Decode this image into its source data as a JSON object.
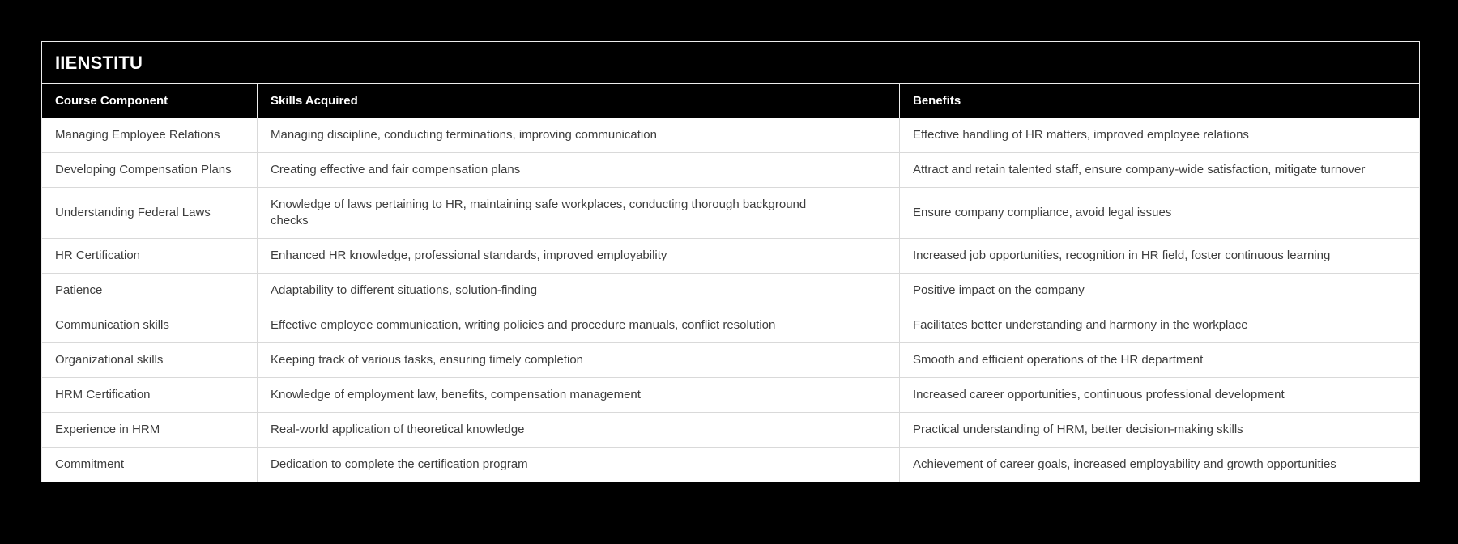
{
  "colors": {
    "page_background": "#000000",
    "panel_border": "#ededed",
    "header_background": "#000000",
    "header_text": "#ffffff",
    "body_background": "#ffffff",
    "body_text": "#3d3d3d",
    "row_divider": "#d9d9d9"
  },
  "table": {
    "title": "IIENSTITU",
    "columns": [
      "Course Component",
      "Skills Acquired",
      "Benefits"
    ],
    "rows": [
      [
        "Managing Employee Relations",
        "Managing discipline, conducting terminations, improving communication",
        "Effective handling of HR matters, improved employee relations"
      ],
      [
        "Developing Compensation Plans",
        "Creating effective and fair compensation plans",
        "Attract and retain talented staff, ensure company-wide satisfaction, mitigate turnover"
      ],
      [
        "Understanding Federal Laws",
        "Knowledge of laws pertaining to HR, maintaining safe workplaces, conducting thorough background checks",
        "Ensure company compliance, avoid legal issues"
      ],
      [
        "HR Certification",
        "Enhanced HR knowledge, professional standards, improved employability",
        "Increased job opportunities, recognition in HR field, foster continuous learning"
      ],
      [
        "Patience",
        "Adaptability to different situations, solution-finding",
        "Positive impact on the company"
      ],
      [
        "Communication skills",
        "Effective employee communication, writing policies and procedure manuals, conflict resolution",
        "Facilitates better understanding and harmony in the workplace"
      ],
      [
        "Organizational skills",
        "Keeping track of various tasks, ensuring timely completion",
        "Smooth and efficient operations of the HR department"
      ],
      [
        "HRM Certification",
        "Knowledge of employment law, benefits, compensation management",
        "Increased career opportunities, continuous professional development"
      ],
      [
        "Experience in HRM",
        "Real-world application of theoretical knowledge",
        "Practical understanding of HRM, better decision-making skills"
      ],
      [
        "Commitment",
        "Dedication to complete the certification program",
        "Achievement of career goals, increased employability and growth opportunities"
      ]
    ]
  }
}
